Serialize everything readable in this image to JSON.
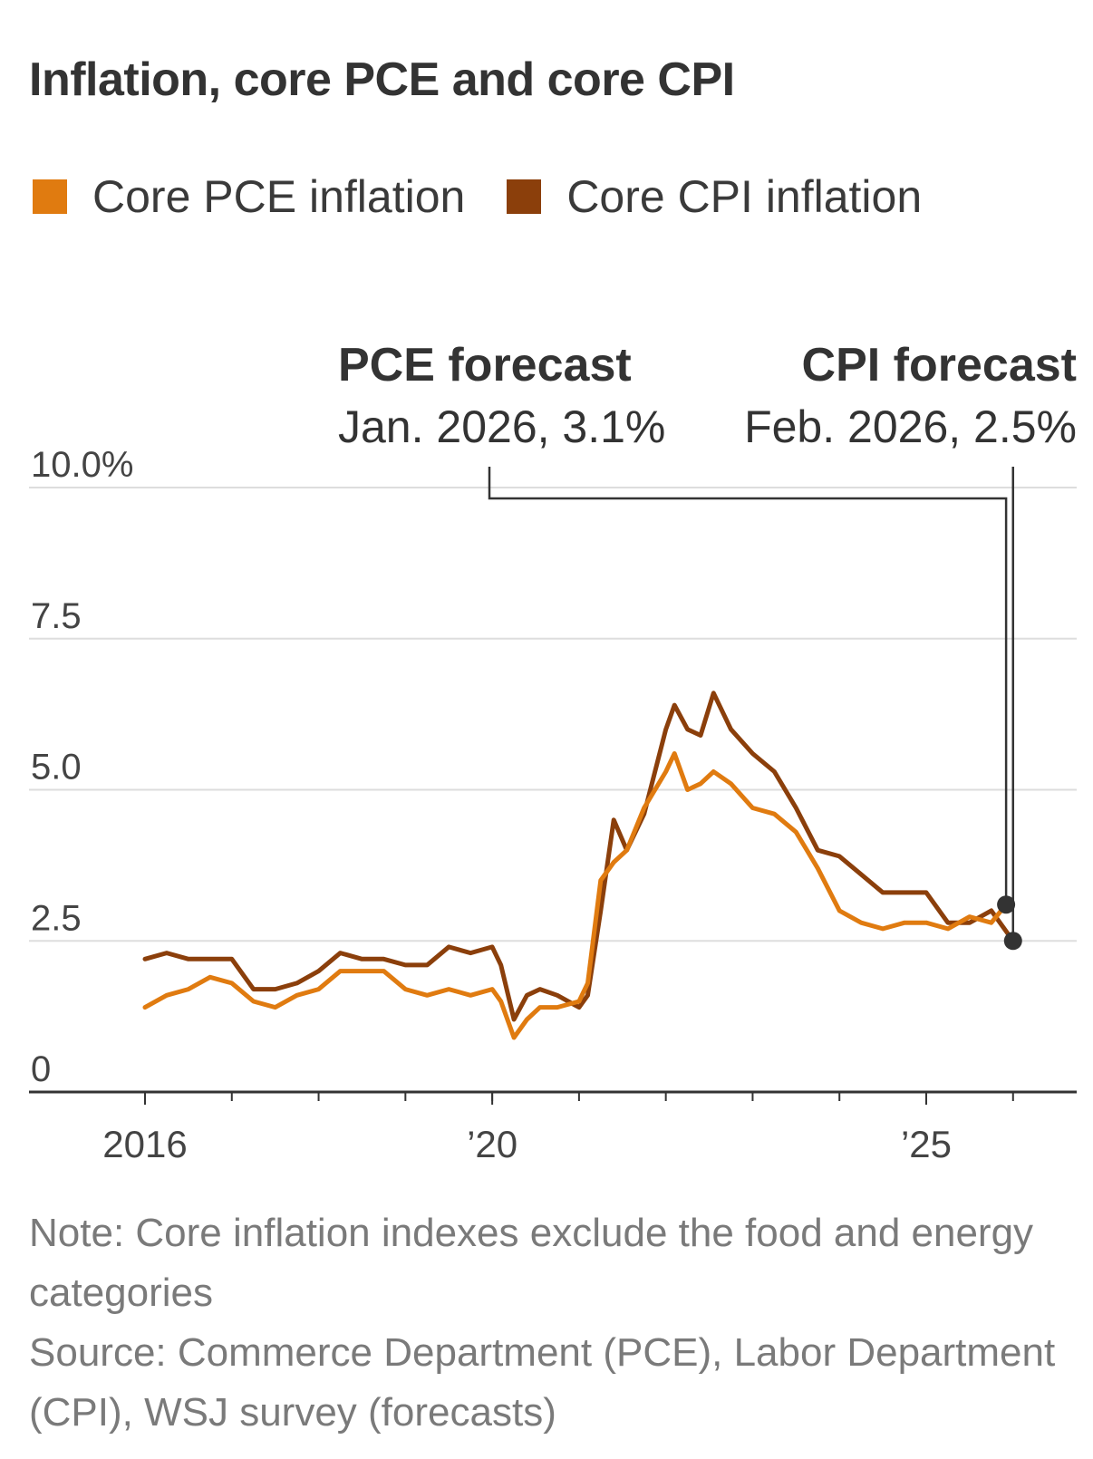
{
  "title": "Inflation, core PCE and core CPI",
  "legend": [
    {
      "label": "Core PCE inflation",
      "color": "#e07b10"
    },
    {
      "label": "Core CPI inflation",
      "color": "#8b3f0b"
    }
  ],
  "annotations": {
    "pce": {
      "heading": "PCE forecast",
      "detail": "Jan. 2026, 3.1%"
    },
    "cpi": {
      "heading": "CPI forecast",
      "detail": "Feb. 2026, 2.5%"
    }
  },
  "note": "Note: Core inflation indexes exclude the food and energy categories",
  "source": "Source: Commerce Department (PCE), Labor Department (CPI), WSJ survey (forecasts)",
  "chart_data": {
    "type": "line",
    "title": "Inflation, core PCE and core CPI",
    "xlabel": "",
    "ylabel": "",
    "ylim": [
      0,
      10
    ],
    "xlim": [
      2014.65,
      2026.4
    ],
    "grid": true,
    "yticks": [
      {
        "value": 0,
        "label": "0"
      },
      {
        "value": 2.5,
        "label": "2.5"
      },
      {
        "value": 5,
        "label": "5.0"
      },
      {
        "value": 7.5,
        "label": "7.5"
      },
      {
        "value": 10,
        "label": "10.0%"
      }
    ],
    "xticks": [
      {
        "value": 2016,
        "label": "2016"
      },
      {
        "value": 2020,
        "label": "’20"
      },
      {
        "value": 2025,
        "label": "’25"
      }
    ],
    "minor_xticks": [
      2016,
      2017,
      2018,
      2019,
      2020,
      2021,
      2022,
      2023,
      2024,
      2025,
      2026
    ],
    "series": [
      {
        "name": "Core PCE inflation",
        "color": "#e07b10",
        "x": [
          2016.0,
          2016.25,
          2016.5,
          2016.75,
          2017.0,
          2017.25,
          2017.5,
          2017.75,
          2018.0,
          2018.25,
          2018.5,
          2018.75,
          2019.0,
          2019.25,
          2019.5,
          2019.75,
          2020.0,
          2020.1,
          2020.25,
          2020.4,
          2020.55,
          2020.75,
          2021.0,
          2021.1,
          2021.25,
          2021.4,
          2021.55,
          2021.75,
          2022.0,
          2022.1,
          2022.25,
          2022.4,
          2022.55,
          2022.75,
          2023.0,
          2023.25,
          2023.5,
          2023.75,
          2024.0,
          2024.25,
          2024.5,
          2024.75,
          2025.0,
          2025.25,
          2025.5,
          2025.75,
          2025.92
        ],
        "values": [
          1.4,
          1.6,
          1.7,
          1.9,
          1.8,
          1.5,
          1.4,
          1.6,
          1.7,
          2.0,
          2.0,
          2.0,
          1.7,
          1.6,
          1.7,
          1.6,
          1.7,
          1.5,
          0.9,
          1.2,
          1.4,
          1.4,
          1.5,
          1.8,
          3.5,
          3.8,
          4.0,
          4.7,
          5.3,
          5.6,
          5.0,
          5.1,
          5.3,
          5.1,
          4.7,
          4.6,
          4.3,
          3.7,
          3.0,
          2.8,
          2.7,
          2.8,
          2.8,
          2.7,
          2.9,
          2.8,
          3.1
        ]
      },
      {
        "name": "Core CPI inflation",
        "color": "#8b3f0b",
        "x": [
          2016.0,
          2016.25,
          2016.5,
          2016.75,
          2017.0,
          2017.25,
          2017.5,
          2017.75,
          2018.0,
          2018.25,
          2018.5,
          2018.75,
          2019.0,
          2019.25,
          2019.5,
          2019.75,
          2020.0,
          2020.1,
          2020.25,
          2020.4,
          2020.55,
          2020.75,
          2021.0,
          2021.1,
          2021.25,
          2021.4,
          2021.55,
          2021.75,
          2022.0,
          2022.1,
          2022.25,
          2022.4,
          2022.55,
          2022.75,
          2023.0,
          2023.25,
          2023.5,
          2023.75,
          2024.0,
          2024.25,
          2024.5,
          2024.75,
          2025.0,
          2025.25,
          2025.5,
          2025.75,
          2026.0
        ],
        "values": [
          2.2,
          2.3,
          2.2,
          2.2,
          2.2,
          1.7,
          1.7,
          1.8,
          2.0,
          2.3,
          2.2,
          2.2,
          2.1,
          2.1,
          2.4,
          2.3,
          2.4,
          2.1,
          1.2,
          1.6,
          1.7,
          1.6,
          1.4,
          1.6,
          3.0,
          4.5,
          4.0,
          4.6,
          6.0,
          6.4,
          6.0,
          5.9,
          6.6,
          6.0,
          5.6,
          5.3,
          4.7,
          4.0,
          3.9,
          3.6,
          3.3,
          3.3,
          3.3,
          2.8,
          2.8,
          3.0,
          2.5
        ]
      }
    ],
    "forecast_points": [
      {
        "series": "Core PCE inflation",
        "x": 2025.92,
        "value": 3.1,
        "label": "Jan. 2026, 3.1%"
      },
      {
        "series": "Core CPI inflation",
        "x": 2026.0,
        "value": 2.5,
        "label": "Feb. 2026, 2.5%"
      }
    ]
  }
}
